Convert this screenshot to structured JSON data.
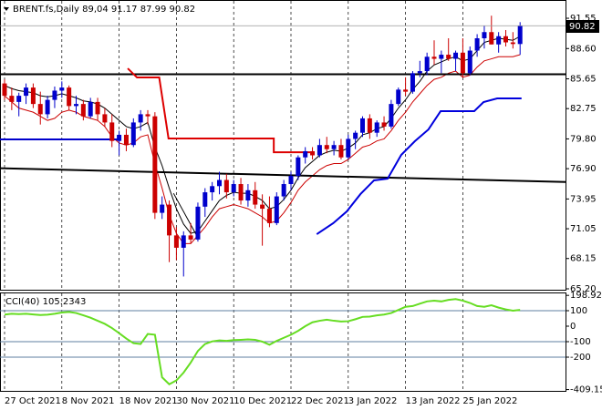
{
  "chart_data": [
    {
      "type": "candlestick",
      "title": "BRENT.fs,Daily  89,04 91.17 87.99 90.82",
      "price_label": "90.82",
      "categories": [
        "27 Oct 2021",
        null,
        null,
        null,
        null,
        null,
        null,
        null,
        "8 Nov 2021",
        null,
        null,
        null,
        null,
        null,
        null,
        null,
        "18 Nov 2021",
        null,
        null,
        null,
        null,
        null,
        null,
        null,
        "30 Nov 2021",
        null,
        null,
        null,
        null,
        null,
        null,
        null,
        "10 Dec 2021",
        null,
        null,
        null,
        null,
        null,
        null,
        null,
        "22 Dec 2021",
        null,
        null,
        null,
        null,
        null,
        null,
        null,
        "3 Jan 2022",
        null,
        null,
        null,
        null,
        null,
        null,
        null,
        "13 Jan 2022",
        null,
        null,
        null,
        null,
        null,
        null,
        null,
        "25 Jan 2022",
        null,
        null,
        null,
        null,
        null,
        null,
        null,
        null
      ],
      "open": [
        85.2,
        84.0,
        83.4,
        84.0,
        84.8,
        83.2,
        82.2,
        83.6,
        84.5,
        84.8,
        83.0,
        83.2,
        82.0,
        83.4,
        82.2,
        81.4,
        79.6,
        80.2,
        79.2,
        81.4,
        82.2,
        82.0,
        72.6,
        73.4,
        70.4,
        69.2,
        70.4,
        70.0,
        73.2,
        74.6,
        75.2,
        75.8,
        74.6,
        75.4,
        73.8,
        74.8,
        73.4,
        73.0,
        71.6,
        74.2,
        75.4,
        76.2,
        78.0,
        78.6,
        78.2,
        79.2,
        78.8,
        79.2,
        78.0,
        79.8,
        80.4,
        81.8,
        80.4,
        81.4,
        81.0,
        83.2,
        84.6,
        84.4,
        86.2,
        86.4,
        87.8,
        87.6,
        88.0,
        87.6,
        88.2,
        86.2,
        88.4,
        89.6,
        90.2,
        89.0,
        89.8,
        89.2,
        89.04
      ],
      "high": [
        85.6,
        84.8,
        84.3,
        85.2,
        85.2,
        84.4,
        84.0,
        84.9,
        85.4,
        85.0,
        84.0,
        83.6,
        83.8,
        83.8,
        82.8,
        82.2,
        80.6,
        80.8,
        81.8,
        82.6,
        82.6,
        82.4,
        74.2,
        73.8,
        71.2,
        70.8,
        71.6,
        73.6,
        75.0,
        75.6,
        76.6,
        76.4,
        75.8,
        76.0,
        75.4,
        75.6,
        74.4,
        74.2,
        74.6,
        75.8,
        76.6,
        78.2,
        79.0,
        79.0,
        79.8,
        80.0,
        79.6,
        79.8,
        80.2,
        80.6,
        82.0,
        82.2,
        81.6,
        82.0,
        83.6,
        84.8,
        85.8,
        86.4,
        87.4,
        88.2,
        89.4,
        88.4,
        89.6,
        88.4,
        89.6,
        88.8,
        90.0,
        90.8,
        91.8,
        90.2,
        90.4,
        90.2,
        91.17
      ],
      "low": [
        83.6,
        82.6,
        82.0,
        83.2,
        82.8,
        81.2,
        81.8,
        82.8,
        83.8,
        82.6,
        82.2,
        81.6,
        81.8,
        81.6,
        81.0,
        79.0,
        78.2,
        78.6,
        79.0,
        80.6,
        81.2,
        72.0,
        72.0,
        67.8,
        68.0,
        66.4,
        69.6,
        69.8,
        72.2,
        73.8,
        74.4,
        74.0,
        74.2,
        73.4,
        73.2,
        73.0,
        69.4,
        71.2,
        71.4,
        73.8,
        74.8,
        75.8,
        77.4,
        77.8,
        78.0,
        78.4,
        78.2,
        77.8,
        77.8,
        78.8,
        80.0,
        79.8,
        80.0,
        80.6,
        80.8,
        83.0,
        84.0,
        84.2,
        85.8,
        86.0,
        87.0,
        86.2,
        87.4,
        86.4,
        85.8,
        86.0,
        87.8,
        88.6,
        89.0,
        88.2,
        88.8,
        88.6,
        87.99
      ],
      "close": [
        84.0,
        83.4,
        84.0,
        84.8,
        83.2,
        82.2,
        83.6,
        84.5,
        84.8,
        83.0,
        83.2,
        82.0,
        83.4,
        82.2,
        81.4,
        79.6,
        80.2,
        79.2,
        81.4,
        82.2,
        82.0,
        72.6,
        73.4,
        70.4,
        69.2,
        70.4,
        70.0,
        73.2,
        74.6,
        75.2,
        75.8,
        74.6,
        75.4,
        73.8,
        74.8,
        73.4,
        73.0,
        71.6,
        74.2,
        75.4,
        76.2,
        78.0,
        78.6,
        78.2,
        79.2,
        78.8,
        79.2,
        78.0,
        79.8,
        80.4,
        81.8,
        80.4,
        81.4,
        81.0,
        83.2,
        84.6,
        84.4,
        86.2,
        86.4,
        87.8,
        87.6,
        88.0,
        87.6,
        88.2,
        86.2,
        88.4,
        89.6,
        90.2,
        89.0,
        89.8,
        89.2,
        89.04,
        90.82
      ],
      "up_color": "#0000cc",
      "down_color": "#cc0000",
      "series": [
        {
          "color": "#000000",
          "values": [
            85.0,
            84.7,
            84.5,
            84.4,
            84.3,
            84.0,
            83.9,
            84.0,
            84.2,
            84.0,
            83.8,
            83.5,
            83.4,
            83.2,
            82.8,
            82.2,
            81.6,
            81.0,
            80.8,
            81.0,
            81.4,
            79.0,
            77.2,
            75.0,
            73.0,
            71.5,
            70.6,
            70.8,
            71.8,
            72.8,
            73.8,
            74.3,
            74.6,
            74.5,
            74.5,
            74.2,
            73.8,
            73.0,
            73.2,
            73.9,
            74.8,
            76.0,
            77.0,
            77.6,
            78.2,
            78.5,
            78.7,
            78.6,
            78.9,
            79.4,
            80.2,
            80.4,
            80.8,
            81.0,
            81.8,
            82.8,
            83.6,
            84.6,
            85.4,
            86.4,
            87.0,
            87.3,
            87.6,
            87.8,
            87.4,
            87.6,
            88.4,
            89.2,
            89.4,
            89.6,
            89.5,
            89.4,
            89.8
          ]
        },
        {
          "color": "#cc0000",
          "values": [
            84.0,
            83.4,
            82.8,
            82.6,
            82.4,
            82.0,
            81.6,
            81.8,
            82.4,
            82.6,
            82.4,
            82.0,
            81.8,
            81.6,
            81.0,
            80.0,
            79.4,
            79.2,
            79.4,
            80.0,
            80.2,
            77.4,
            75.0,
            72.4,
            70.6,
            69.6,
            69.6,
            70.4,
            71.2,
            72.2,
            73.0,
            73.2,
            73.4,
            73.2,
            73.0,
            72.6,
            72.2,
            71.6,
            71.8,
            72.6,
            73.6,
            74.8,
            75.6,
            76.2,
            76.8,
            77.2,
            77.4,
            77.4,
            77.8,
            78.4,
            79.0,
            79.2,
            79.6,
            79.8,
            80.6,
            81.6,
            82.4,
            83.4,
            84.2,
            85.0,
            85.6,
            85.8,
            86.2,
            86.4,
            85.8,
            86.0,
            86.8,
            87.4,
            87.6,
            87.8,
            87.8,
            87.8,
            88.0
          ]
        }
      ],
      "overlays": [
        {
          "color": "#000000",
          "width": 2,
          "x": [
            -0.7,
            78.4
          ],
          "values": [
            86.1,
            86.1
          ]
        },
        {
          "color": "#000000",
          "width": 2,
          "x": [
            -0.7,
            78.4
          ],
          "values": [
            76.95,
            75.6
          ]
        },
        {
          "color": "#0000cc",
          "width": 2,
          "x": [
            -0.7,
            16.0
          ],
          "values": [
            79.75,
            79.75
          ]
        },
        {
          "color": "#000000",
          "width": 1,
          "x": [
            23.6,
            26.8
          ],
          "values": [
            74.5,
            70.43
          ]
        },
        {
          "color": "#dd0000",
          "width": 2,
          "x": [
            17.2,
            18.5,
            21.6,
            22.9,
            37.6,
            37.6,
            42.7
          ],
          "values": [
            86.67,
            85.78,
            85.78,
            79.84,
            79.84,
            78.5,
            78.5
          ]
        },
        {
          "color": "#0000dd",
          "width": 2,
          "x": [
            43.6,
            45.9,
            47.8,
            49.7,
            51.6,
            53.5,
            55.4,
            57.3,
            59.2,
            60.9,
            62.4,
            65.6,
            66.9,
            68.8,
            72.2
          ],
          "values": [
            70.52,
            71.59,
            72.74,
            74.42,
            75.76,
            75.93,
            78.24,
            79.57,
            80.72,
            82.5,
            82.5,
            82.5,
            83.39,
            83.74,
            83.74
          ]
        }
      ],
      "ylim": [
        65.11,
        93.15
      ],
      "yticks": [
        91.55,
        {
          "value": 88.6,
          "label": "88.60"
        },
        85.65,
        82.75,
        {
          "value": 79.8,
          "label": "79.80"
        },
        {
          "value": 76.9,
          "label": "76.90"
        },
        73.95,
        71.05,
        68.15,
        {
          "value": 65.2,
          "label": "65.20"
        }
      ]
    },
    {
      "type": "line",
      "title": "CCI(40) 105.2343",
      "color": "#66dd22",
      "values": [
        75,
        80,
        78,
        80,
        76,
        72,
        74,
        80,
        88,
        92,
        85,
        70,
        55,
        35,
        15,
        -12,
        -45,
        -80,
        -110,
        -115,
        -50,
        -55,
        -330,
        -375,
        -350,
        -300,
        -235,
        -160,
        -115,
        -98,
        -92,
        -95,
        -90,
        -88,
        -85,
        -88,
        -100,
        -120,
        -95,
        -75,
        -55,
        -30,
        0,
        25,
        35,
        42,
        35,
        30,
        32,
        45,
        60,
        62,
        70,
        75,
        85,
        105,
        125,
        130,
        145,
        160,
        165,
        160,
        170,
        175,
        165,
        150,
        130,
        125,
        135,
        120,
        108,
        100,
        105.2343
      ],
      "ylim": [
        -423.5,
        211.8
      ],
      "yticks": [
        198.9222,
        100,
        0,
        -100,
        -200,
        {
          "value": -409.15,
          "label": "-409.150"
        }
      ],
      "levels": [
        100,
        -100,
        -200
      ],
      "level_color": "#5f7fa0"
    }
  ]
}
